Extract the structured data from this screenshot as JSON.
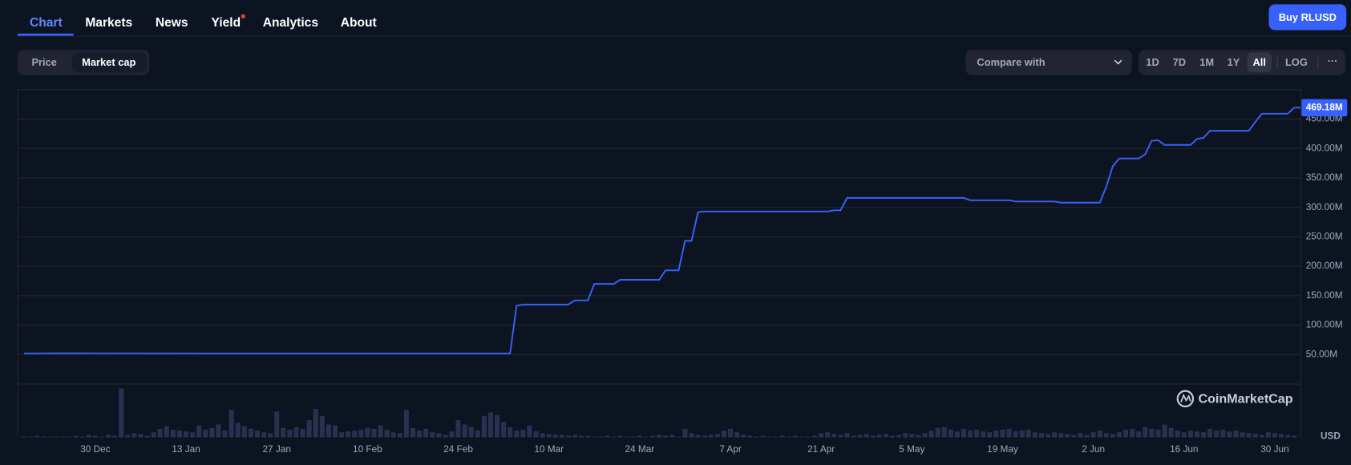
{
  "nav": {
    "tabs": [
      "Chart",
      "Markets",
      "News",
      "Yield",
      "Analytics",
      "About"
    ]
  },
  "button": "Buy RLUSD",
  "toggle": [
    "Price",
    "Market cap"
  ],
  "compare": "Compare with",
  "ranges": [
    "1D",
    "7D",
    "1M",
    "1Y",
    "All"
  ],
  "log": "LOG",
  "more": "···",
  "watermark": "CoinMarketCap",
  "currency": "USD",
  "chart_data": [
    {
      "type": "line",
      "color": "#3861fb",
      "x": [
        "19 Dec",
        "26 Dec",
        "15 Jan",
        "10 Feb",
        "3 Mar",
        "4 Mar",
        "5 Mar",
        "6 Mar",
        "13 Mar",
        "14 Mar",
        "16 Mar",
        "17 Mar",
        "20 Mar",
        "21 Mar",
        "27 Mar",
        "28 Mar",
        "30 Mar",
        "31 Mar",
        "1 Apr",
        "2 Apr",
        "3 Apr",
        "22 Apr",
        "23 Apr",
        "24 Apr",
        "25 Apr",
        "13 May",
        "14 May",
        "20 May",
        "21 May",
        "27 May",
        "28 May",
        "3 Jun",
        "4 Jun",
        "5 Jun",
        "6 Jun",
        "9 Jun",
        "10 Jun",
        "11 Jun",
        "12 Jun",
        "13 Jun",
        "17 Jun",
        "18 Jun",
        "19 Jun",
        "20 Jun",
        "26 Jun",
        "27 Jun",
        "28 Jun",
        "2 Jul",
        "3 Jul",
        "4 Jul"
      ],
      "values": [
        52,
        52.3,
        52,
        52,
        52,
        52,
        133,
        135,
        135,
        142,
        142,
        170,
        170,
        177,
        177,
        193,
        193,
        243,
        243,
        292,
        293,
        293,
        295,
        295,
        316,
        316,
        312,
        312,
        310,
        310,
        308,
        308,
        335,
        370,
        383,
        383,
        390,
        413,
        414,
        406,
        406,
        416,
        418,
        430,
        430,
        445,
        459,
        459,
        469.18,
        469.18
      ],
      "xlim": [
        "18 Dec",
        "4 Jul"
      ],
      "xticks": [
        "30 Dec",
        "13 Jan",
        "27 Jan",
        "10 Feb",
        "24 Feb",
        "10 Mar",
        "24 Mar",
        "7 Apr",
        "21 Apr",
        "5 May",
        "19 May",
        "2 Jun",
        "16 Jun",
        "30 Jun"
      ],
      "ylim": [
        0,
        500
      ],
      "yticks": [
        {
          "value": 50,
          "label": "50.00M"
        },
        {
          "value": 100,
          "label": "100.00M"
        },
        {
          "value": 150,
          "label": "150.00M"
        },
        {
          "value": 200,
          "label": "200.00M"
        },
        {
          "value": 250,
          "label": "250.00M"
        },
        {
          "value": 300,
          "label": "300.00M"
        },
        {
          "value": 350,
          "label": "350.00M"
        },
        {
          "value": 400,
          "label": "400.00M"
        },
        {
          "value": 450,
          "label": "450.00M"
        }
      ],
      "grid": true,
      "current_value": {
        "value": 469.18,
        "label": "469.18M"
      }
    },
    {
      "type": "bar",
      "color": "#283250",
      "x": [
        "19 Dec",
        "20 Dec",
        "21 Dec",
        "22 Dec",
        "23 Dec",
        "24 Dec",
        "25 Dec",
        "26 Dec",
        "27 Dec",
        "28 Dec",
        "29 Dec",
        "30 Dec",
        "31 Dec",
        "1 Jan",
        "2 Jan",
        "3 Jan",
        "4 Jan",
        "5 Jan",
        "6 Jan",
        "7 Jan",
        "8 Jan",
        "9 Jan",
        "10 Jan",
        "11 Jan",
        "12 Jan",
        "13 Jan",
        "14 Jan",
        "15 Jan",
        "16 Jan",
        "17 Jan",
        "18 Jan",
        "19 Jan",
        "20 Jan",
        "21 Jan",
        "22 Jan",
        "23 Jan",
        "24 Jan",
        "25 Jan",
        "26 Jan",
        "27 Jan",
        "28 Jan",
        "29 Jan",
        "30 Jan",
        "31 Jan",
        "1 Feb",
        "2 Feb",
        "3 Feb",
        "4 Feb",
        "5 Feb",
        "6 Feb",
        "7 Feb",
        "8 Feb",
        "9 Feb",
        "10 Feb",
        "11 Feb",
        "12 Feb",
        "13 Feb",
        "14 Feb",
        "15 Feb",
        "16 Feb",
        "17 Feb",
        "18 Feb",
        "19 Feb",
        "20 Feb",
        "21 Feb",
        "22 Feb",
        "23 Feb",
        "24 Feb",
        "25 Feb",
        "26 Feb",
        "27 Feb",
        "28 Feb",
        "1 Mar",
        "2 Mar",
        "3 Mar",
        "4 Mar",
        "5 Mar",
        "6 Mar",
        "7 Mar",
        "8 Mar",
        "9 Mar",
        "10 Mar",
        "11 Mar",
        "12 Mar",
        "13 Mar",
        "14 Mar",
        "15 Mar",
        "16 Mar",
        "17 Mar",
        "18 Mar",
        "19 Mar",
        "20 Mar",
        "21 Mar",
        "22 Mar",
        "23 Mar",
        "24 Mar",
        "25 Mar",
        "26 Mar",
        "27 Mar",
        "28 Mar",
        "29 Mar",
        "30 Mar",
        "31 Mar",
        "1 Apr",
        "2 Apr",
        "3 Apr",
        "4 Apr",
        "5 Apr",
        "6 Apr",
        "7 Apr",
        "8 Apr",
        "9 Apr",
        "10 Apr",
        "11 Apr",
        "12 Apr",
        "13 Apr",
        "14 Apr",
        "15 Apr",
        "16 Apr",
        "17 Apr",
        "18 Apr",
        "19 Apr",
        "20 Apr",
        "21 Apr",
        "22 Apr",
        "23 Apr",
        "24 Apr",
        "25 Apr",
        "26 Apr",
        "27 Apr",
        "28 Apr",
        "29 Apr",
        "30 Apr",
        "1 May",
        "2 May",
        "3 May",
        "4 May",
        "5 May",
        "6 May",
        "7 May",
        "8 May",
        "9 May",
        "10 May",
        "11 May",
        "12 May",
        "13 May",
        "14 May",
        "15 May",
        "16 May",
        "17 May",
        "18 May",
        "19 May",
        "20 May",
        "21 May",
        "22 May",
        "23 May",
        "24 May",
        "25 May",
        "26 May",
        "27 May",
        "28 May",
        "29 May",
        "30 May",
        "31 May",
        "1 Jun",
        "2 Jun",
        "3 Jun",
        "4 Jun",
        "5 Jun",
        "6 Jun",
        "7 Jun",
        "8 Jun",
        "9 Jun",
        "10 Jun",
        "11 Jun",
        "12 Jun",
        "13 Jun",
        "14 Jun",
        "15 Jun",
        "16 Jun",
        "17 Jun",
        "18 Jun",
        "19 Jun",
        "20 Jun",
        "21 Jun",
        "22 Jun",
        "23 Jun",
        "24 Jun",
        "25 Jun",
        "26 Jun",
        "27 Jun",
        "28 Jun",
        "29 Jun",
        "30 Jun",
        "1 Jul",
        "2 Jul",
        "3 Jul"
      ],
      "values": [
        1,
        1,
        2,
        1,
        1,
        1,
        1,
        1,
        2,
        1,
        3,
        2,
        1,
        3,
        2,
        57,
        3,
        5,
        4,
        2,
        6,
        10,
        13,
        9,
        8,
        7,
        6,
        14,
        9,
        11,
        15,
        8,
        32,
        17,
        13,
        10,
        8,
        6,
        5,
        30,
        11,
        9,
        12,
        10,
        20,
        33,
        25,
        15,
        14,
        6,
        7,
        8,
        9,
        11,
        10,
        14,
        9,
        6,
        5,
        32,
        11,
        8,
        10,
        6,
        5,
        3,
        7,
        20,
        15,
        12,
        8,
        25,
        29,
        26,
        18,
        12,
        8,
        9,
        14,
        7,
        5,
        4,
        3,
        3,
        2,
        3,
        2,
        2,
        1,
        1,
        2,
        1,
        2,
        1,
        1,
        2,
        1,
        2,
        3,
        2,
        3,
        1,
        10,
        5,
        3,
        2,
        3,
        4,
        8,
        10,
        6,
        3,
        2,
        1,
        2,
        1,
        1,
        2,
        1,
        2,
        1,
        1,
        2,
        5,
        6,
        4,
        3,
        5,
        2,
        3,
        4,
        2,
        3,
        4,
        2,
        3,
        5,
        4,
        3,
        5,
        8,
        11,
        12,
        9,
        7,
        10,
        8,
        9,
        7,
        6,
        8,
        9,
        10,
        7,
        8,
        9,
        6,
        5,
        4,
        6,
        5,
        4,
        3,
        5,
        3,
        6,
        8,
        5,
        4,
        6,
        9,
        10,
        7,
        12,
        10,
        9,
        15,
        11,
        8,
        6,
        8,
        7,
        6,
        10,
        8,
        9,
        7,
        8,
        6,
        5,
        4,
        3,
        6,
        5,
        4,
        3,
        2
      ],
      "xlim": [
        "18 Dec",
        "4 Jul"
      ],
      "ylim": [
        0,
        60
      ]
    }
  ]
}
